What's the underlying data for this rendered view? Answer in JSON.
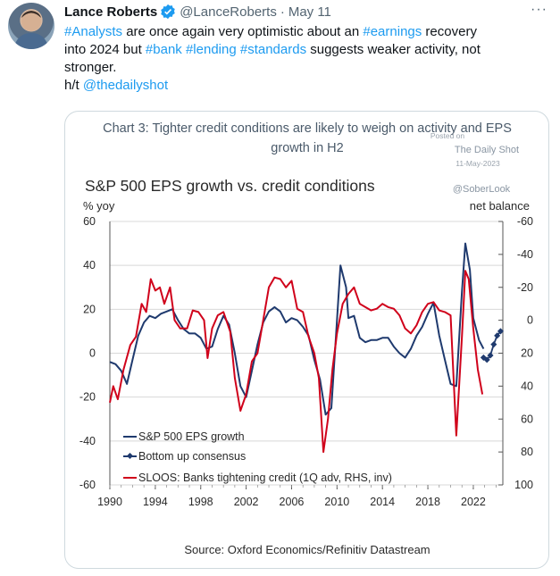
{
  "tweet": {
    "author_name": "Lance Roberts",
    "handle": "@LanceRoberts",
    "separator": "·",
    "date": "May 11",
    "more": "···",
    "line1": [
      "#Analysts",
      " are once again very optimistic about an ",
      "#earnings",
      " recovery"
    ],
    "line2": [
      "into 2024 but ",
      "#bank",
      " ",
      "#lending",
      " ",
      "#standards",
      " suggests weaker activity, not"
    ],
    "line3": "stronger.",
    "line4": [
      "h/t ",
      "@thedailyshot"
    ]
  },
  "icons": {
    "verified": "verified-badge-icon",
    "more": "more-options-icon",
    "avatar": "avatar-photo"
  },
  "colors": {
    "link": "#1d9bf0",
    "eps": "#1f3a6e",
    "consensus": "#1f3a6e",
    "sloos": "#d0021b",
    "chart_title": "#4a5a6a"
  },
  "chart_data": {
    "type": "line",
    "title": "Chart 3: Tighter credit conditions are likely to weigh on activity and EPS",
    "title_line2": "growth in H2",
    "subtitle": "S&P 500 EPS growth vs. credit conditions",
    "watermark": [
      "Posted on",
      "The Daily Shot",
      "11-May-2023",
      "@SoberLook"
    ],
    "ylabel_left": "% yoy",
    "ylabel_right": "net balance",
    "ylim_left": [
      -60,
      60
    ],
    "ylim_right_inverted": [
      100,
      -60
    ],
    "xlim": [
      1990,
      2024.6
    ],
    "x_ticks": [
      "1990",
      "1994",
      "1998",
      "2002",
      "2006",
      "2010",
      "2014",
      "2018",
      "2022"
    ],
    "y_ticks_left": [
      "60",
      "40",
      "20",
      "0",
      "-20",
      "-40",
      "-60"
    ],
    "y_ticks_right": [
      "-60",
      "-40",
      "-20",
      "0",
      "20",
      "40",
      "60",
      "80",
      "100"
    ],
    "source": "Source: Oxford Economics/Refinitiv Datastream",
    "legend": [
      "S&P 500 EPS growth",
      "Bottom up consensus",
      "SLOOS: Banks tightening credit (1Q adv, RHS, inv)"
    ],
    "series": [
      {
        "name": "S&P 500 EPS growth",
        "axis": "left",
        "points": [
          [
            1990,
            -4
          ],
          [
            1990.5,
            -5
          ],
          [
            1991,
            -8
          ],
          [
            1991.5,
            -14
          ],
          [
            1992,
            -3
          ],
          [
            1992.5,
            8
          ],
          [
            1993,
            14
          ],
          [
            1993.5,
            17
          ],
          [
            1994,
            16
          ],
          [
            1994.5,
            18
          ],
          [
            1995,
            19
          ],
          [
            1995.5,
            20
          ],
          [
            1996,
            15
          ],
          [
            1996.5,
            11
          ],
          [
            1997,
            9
          ],
          [
            1997.5,
            9
          ],
          [
            1998,
            7
          ],
          [
            1998.5,
            2
          ],
          [
            1999,
            3
          ],
          [
            1999.5,
            11
          ],
          [
            2000,
            17
          ],
          [
            2000.5,
            13
          ],
          [
            2001,
            0
          ],
          [
            2001.5,
            -15
          ],
          [
            2002,
            -20
          ],
          [
            2002.5,
            -8
          ],
          [
            2003,
            4
          ],
          [
            2003.5,
            14
          ],
          [
            2004,
            19
          ],
          [
            2004.5,
            21
          ],
          [
            2005,
            19
          ],
          [
            2005.5,
            14
          ],
          [
            2006,
            16
          ],
          [
            2006.5,
            15
          ],
          [
            2007,
            12
          ],
          [
            2007.5,
            8
          ],
          [
            2008,
            -3
          ],
          [
            2008.5,
            -12
          ],
          [
            2009,
            -28
          ],
          [
            2009.5,
            -25
          ],
          [
            2010,
            15
          ],
          [
            2010.3,
            40
          ],
          [
            2010.8,
            30
          ],
          [
            2011,
            16
          ],
          [
            2011.5,
            17
          ],
          [
            2012,
            7
          ],
          [
            2012.5,
            5
          ],
          [
            2013,
            6
          ],
          [
            2013.5,
            6
          ],
          [
            2014,
            7
          ],
          [
            2014.5,
            7
          ],
          [
            2015,
            3
          ],
          [
            2015.5,
            0
          ],
          [
            2016,
            -2
          ],
          [
            2016.5,
            2
          ],
          [
            2017,
            8
          ],
          [
            2017.5,
            12
          ],
          [
            2018,
            18
          ],
          [
            2018.5,
            23
          ],
          [
            2019,
            8
          ],
          [
            2019.5,
            -3
          ],
          [
            2020,
            -14
          ],
          [
            2020.5,
            -15
          ],
          [
            2021,
            28
          ],
          [
            2021.3,
            50
          ],
          [
            2021.7,
            38
          ],
          [
            2022,
            16
          ],
          [
            2022.5,
            6
          ],
          [
            2022.9,
            2
          ]
        ]
      },
      {
        "name": "Bottom up consensus",
        "axis": "left",
        "points": [
          [
            2022.9,
            -2
          ],
          [
            2023.2,
            -3
          ],
          [
            2023.5,
            -1
          ],
          [
            2023.8,
            4
          ],
          [
            2024.1,
            8
          ],
          [
            2024.4,
            10
          ]
        ]
      },
      {
        "name": "SLOOS: Banks tightening credit (1Q adv, RHS, inv)",
        "axis": "right",
        "points": [
          [
            1990,
            50
          ],
          [
            1990.3,
            40
          ],
          [
            1990.7,
            48
          ],
          [
            1991.2,
            30
          ],
          [
            1991.8,
            15
          ],
          [
            1992.3,
            10
          ],
          [
            1992.8,
            -10
          ],
          [
            1993.2,
            -5
          ],
          [
            1993.6,
            -25
          ],
          [
            1994,
            -18
          ],
          [
            1994.4,
            -20
          ],
          [
            1994.8,
            -10
          ],
          [
            1995.3,
            -20
          ],
          [
            1995.7,
            0
          ],
          [
            1996.2,
            5
          ],
          [
            1996.8,
            5
          ],
          [
            1997.3,
            -6
          ],
          [
            1997.8,
            -5
          ],
          [
            1998.3,
            0
          ],
          [
            1998.6,
            23
          ],
          [
            1999,
            5
          ],
          [
            1999.5,
            -3
          ],
          [
            2000,
            -5
          ],
          [
            2000.6,
            7
          ],
          [
            2001,
            35
          ],
          [
            2001.5,
            55
          ],
          [
            2002,
            45
          ],
          [
            2002.5,
            25
          ],
          [
            2003,
            20
          ],
          [
            2003.5,
            0
          ],
          [
            2004,
            -20
          ],
          [
            2004.5,
            -26
          ],
          [
            2005,
            -25
          ],
          [
            2005.5,
            -20
          ],
          [
            2006,
            -24
          ],
          [
            2006.5,
            -7
          ],
          [
            2007,
            -5
          ],
          [
            2007.5,
            10
          ],
          [
            2008,
            20
          ],
          [
            2008.4,
            35
          ],
          [
            2008.8,
            80
          ],
          [
            2009.2,
            60
          ],
          [
            2009.6,
            30
          ],
          [
            2010,
            8
          ],
          [
            2010.5,
            -10
          ],
          [
            2011,
            -16
          ],
          [
            2011.5,
            -20
          ],
          [
            2012,
            -10
          ],
          [
            2012.5,
            -8
          ],
          [
            2013,
            -6
          ],
          [
            2013.5,
            -7
          ],
          [
            2014,
            -10
          ],
          [
            2014.5,
            -8
          ],
          [
            2015,
            -7
          ],
          [
            2015.5,
            -3
          ],
          [
            2016,
            5
          ],
          [
            2016.5,
            8
          ],
          [
            2017,
            3
          ],
          [
            2017.5,
            -5
          ],
          [
            2018,
            -10
          ],
          [
            2018.5,
            -11
          ],
          [
            2019,
            -6
          ],
          [
            2019.5,
            -5
          ],
          [
            2020,
            -3
          ],
          [
            2020.5,
            70
          ],
          [
            2021,
            10
          ],
          [
            2021.3,
            -30
          ],
          [
            2021.6,
            -25
          ],
          [
            2022,
            5
          ],
          [
            2022.4,
            30
          ],
          [
            2022.8,
            45
          ]
        ]
      }
    ]
  }
}
